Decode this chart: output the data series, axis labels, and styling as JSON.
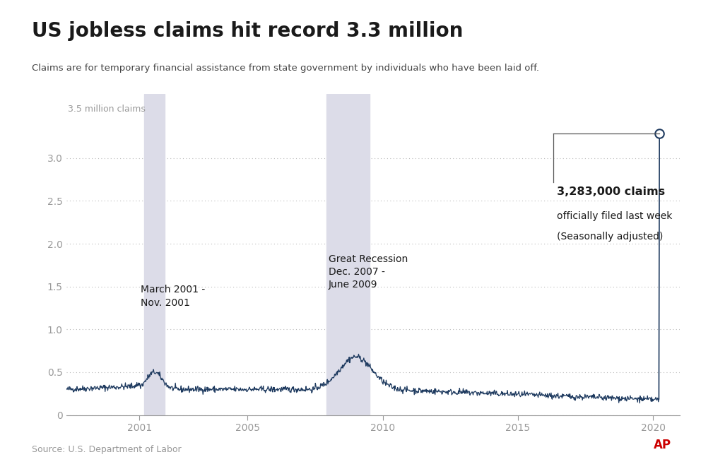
{
  "title": "US jobless claims hit record 3.3 million",
  "subtitle": "Claims are for temporary financial assistance from state government by individuals who have been laid off.",
  "ylabel_top": "3.5 million claims",
  "source": "Source: U.S. Department of Labor",
  "ylim": [
    0,
    3.75
  ],
  "yticks": [
    0,
    0.5,
    1.0,
    1.5,
    2.0,
    2.5,
    3.0
  ],
  "ytick_labels": [
    "0",
    "0.5",
    "1.0",
    "1.5",
    "2.0",
    "2.5",
    "3.0"
  ],
  "x_start_year": 1998.3,
  "x_end_year": 2021.0,
  "xticks": [
    2001,
    2005,
    2010,
    2015,
    2020
  ],
  "recession1_start": 2001.17,
  "recession1_end": 2001.92,
  "recession2_start": 2007.92,
  "recession2_end": 2009.5,
  "recession1_label_line1": "March 2001 -",
  "recession1_label_line2": "Nov. 2001",
  "recession2_label_line1": "Great Recession",
  "recession2_label_line2": "Dec. 2007 -",
  "recession2_label_line3": "June 2009",
  "annotation_bold": "3,283,000 claims",
  "annotation_line2": "officially filed last week",
  "annotation_line3": "(Seasonally adjusted)",
  "spike_year": 2020.22,
  "spike_value": 3.283,
  "background_color": "#ffffff",
  "recession_color": "#dcdce8",
  "line_color": "#1e3a5f",
  "grid_color": "#bbbbbb",
  "title_color": "#1a1a1a",
  "subtitle_color": "#444444",
  "axis_color": "#999999",
  "annotation_box_color": "#555555",
  "ap_color": "#cc0000"
}
